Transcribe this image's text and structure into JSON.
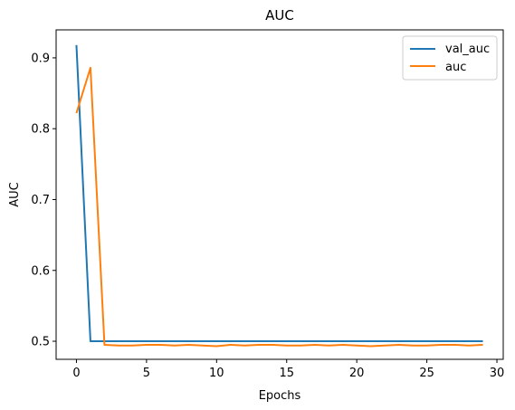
{
  "chart_data": {
    "type": "line",
    "title": "AUC",
    "xlabel": "Epochs",
    "ylabel": "AUC",
    "xlim": [
      -1.45,
      30.45
    ],
    "ylim": [
      0.4745,
      0.9395
    ],
    "xticks": [
      0,
      5,
      10,
      15,
      20,
      25,
      30
    ],
    "yticks": [
      0.5,
      0.6,
      0.7,
      0.8,
      0.9
    ],
    "xtick_labels": [
      "0",
      "5",
      "10",
      "15",
      "20",
      "25",
      "30"
    ],
    "ytick_labels": [
      "0.5",
      "0.6",
      "0.7",
      "0.8",
      "0.9"
    ],
    "grid": false,
    "legend": "top-right",
    "x": [
      0,
      1,
      2,
      3,
      4,
      5,
      6,
      7,
      8,
      9,
      10,
      11,
      12,
      13,
      14,
      15,
      16,
      17,
      18,
      19,
      20,
      21,
      22,
      23,
      24,
      25,
      26,
      27,
      28,
      29
    ],
    "series": [
      {
        "name": "val_auc",
        "color": "#1f77b4",
        "values": [
          0.918,
          0.5,
          0.5,
          0.5,
          0.5,
          0.5,
          0.5,
          0.5,
          0.5,
          0.5,
          0.5,
          0.5,
          0.5,
          0.5,
          0.5,
          0.5,
          0.5,
          0.5,
          0.5,
          0.5,
          0.5,
          0.5,
          0.5,
          0.5,
          0.5,
          0.5,
          0.5,
          0.5,
          0.5,
          0.5
        ]
      },
      {
        "name": "auc",
        "color": "#ff7f0e",
        "values": [
          0.822,
          0.886,
          0.495,
          0.494,
          0.494,
          0.495,
          0.495,
          0.494,
          0.495,
          0.494,
          0.493,
          0.495,
          0.494,
          0.495,
          0.495,
          0.494,
          0.494,
          0.495,
          0.494,
          0.495,
          0.494,
          0.493,
          0.494,
          0.495,
          0.494,
          0.494,
          0.495,
          0.495,
          0.494,
          0.495
        ]
      }
    ]
  }
}
